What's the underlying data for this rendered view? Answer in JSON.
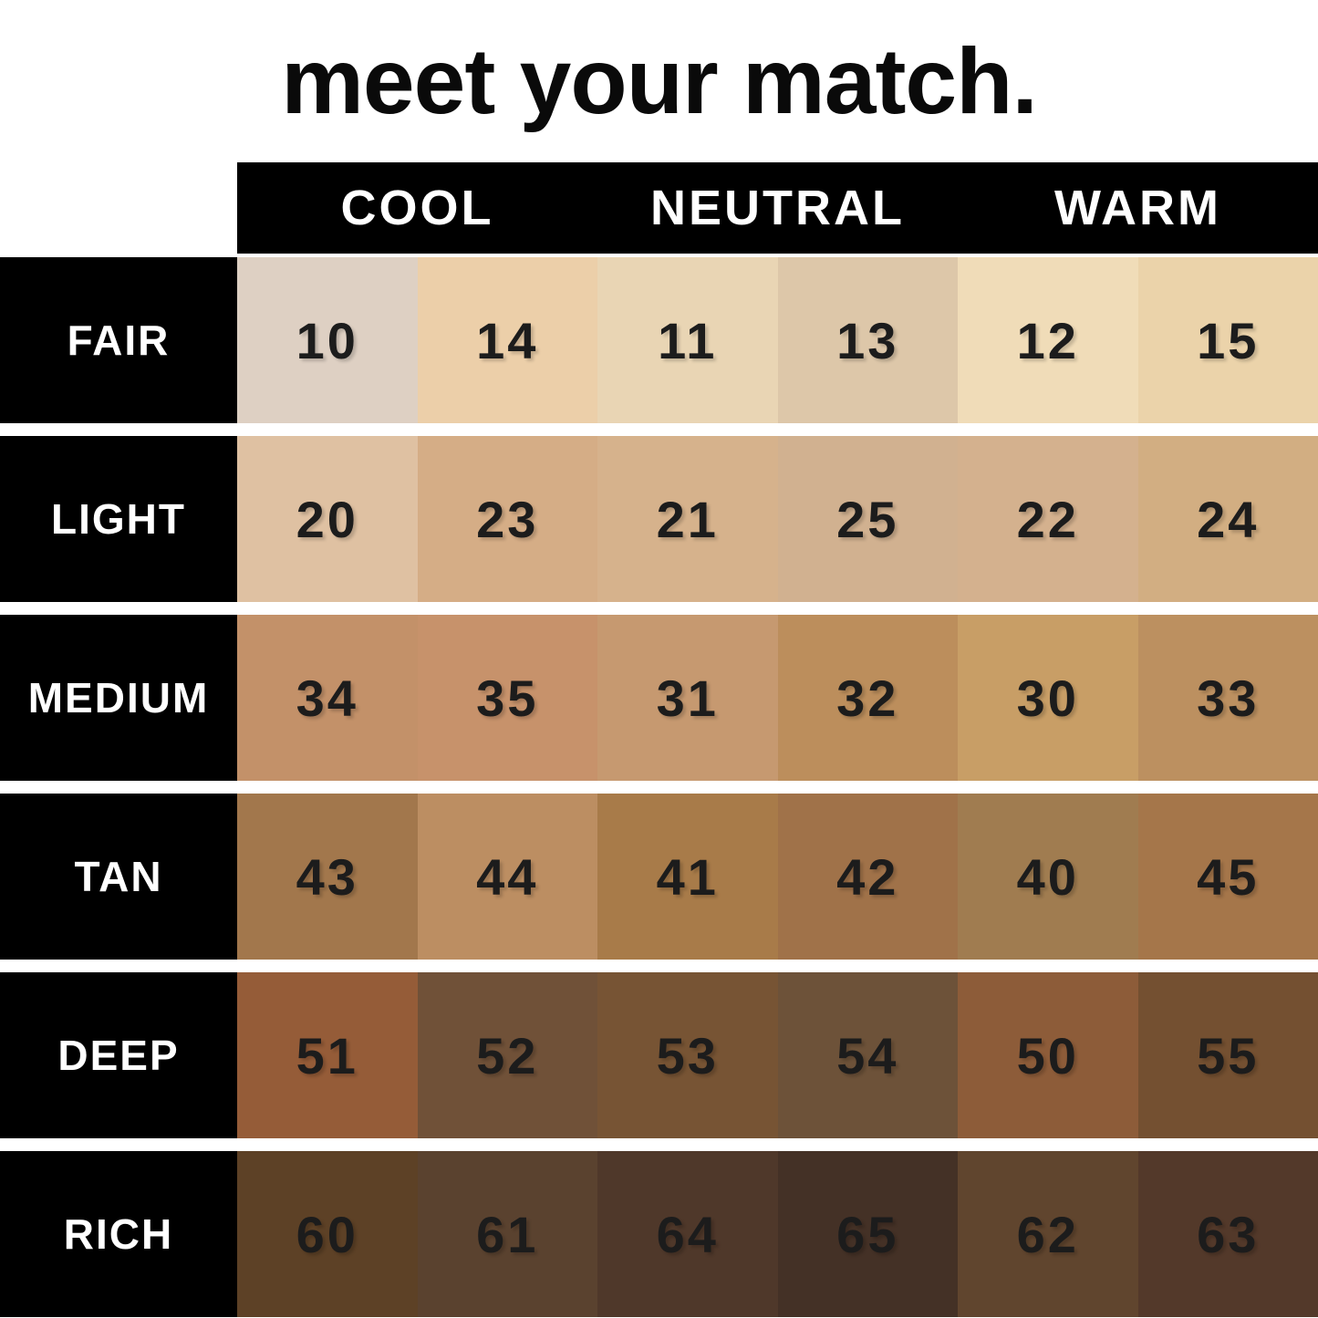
{
  "title": "meet your match.",
  "colors": {
    "background": "#ffffff",
    "panel": "#000000",
    "label_text": "#ffffff",
    "number_text": "#1c1c1c"
  },
  "chart_data": {
    "type": "table",
    "title": "meet your match.",
    "column_groups": [
      {
        "label": "COOL"
      },
      {
        "label": "NEUTRAL"
      },
      {
        "label": "WARM"
      }
    ],
    "rows": [
      {
        "label": "FAIR",
        "shades": [
          {
            "number": "10",
            "color": "#ded0c3"
          },
          {
            "number": "14",
            "color": "#eccfa9"
          },
          {
            "number": "11",
            "color": "#e9d5b4"
          },
          {
            "number": "13",
            "color": "#ddc7a9"
          },
          {
            "number": "12",
            "color": "#f0dcb8"
          },
          {
            "number": "15",
            "color": "#ebd3aa"
          }
        ]
      },
      {
        "label": "LIGHT",
        "shades": [
          {
            "number": "20",
            "color": "#dfc1a2"
          },
          {
            "number": "23",
            "color": "#d5ad86"
          },
          {
            "number": "21",
            "color": "#d6b28c"
          },
          {
            "number": "25",
            "color": "#d1b190"
          },
          {
            "number": "22",
            "color": "#d4b18e"
          },
          {
            "number": "24",
            "color": "#d2ae82"
          }
        ]
      },
      {
        "label": "MEDIUM",
        "shades": [
          {
            "number": "34",
            "color": "#c39169"
          },
          {
            "number": "35",
            "color": "#c7926b"
          },
          {
            "number": "31",
            "color": "#c69970"
          },
          {
            "number": "32",
            "color": "#bc8e5c"
          },
          {
            "number": "30",
            "color": "#c89e66"
          },
          {
            "number": "33",
            "color": "#bc9060"
          }
        ]
      },
      {
        "label": "TAN",
        "shades": [
          {
            "number": "43",
            "color": "#a2774c"
          },
          {
            "number": "44",
            "color": "#bc8e62"
          },
          {
            "number": "41",
            "color": "#a87b49"
          },
          {
            "number": "42",
            "color": "#a07249"
          },
          {
            "number": "40",
            "color": "#a07c50"
          },
          {
            "number": "45",
            "color": "#a5764a"
          }
        ]
      },
      {
        "label": "DEEP",
        "shades": [
          {
            "number": "51",
            "color": "#955c38"
          },
          {
            "number": "52",
            "color": "#705138"
          },
          {
            "number": "53",
            "color": "#775434"
          },
          {
            "number": "54",
            "color": "#6d5239"
          },
          {
            "number": "50",
            "color": "#8d5c39"
          },
          {
            "number": "55",
            "color": "#745031"
          }
        ]
      },
      {
        "label": "RICH",
        "shades": [
          {
            "number": "60",
            "color": "#5d4126"
          },
          {
            "number": "61",
            "color": "#5a422f"
          },
          {
            "number": "64",
            "color": "#4f382a"
          },
          {
            "number": "65",
            "color": "#443126"
          },
          {
            "number": "62",
            "color": "#60452e"
          },
          {
            "number": "63",
            "color": "#53392a"
          }
        ]
      }
    ]
  }
}
